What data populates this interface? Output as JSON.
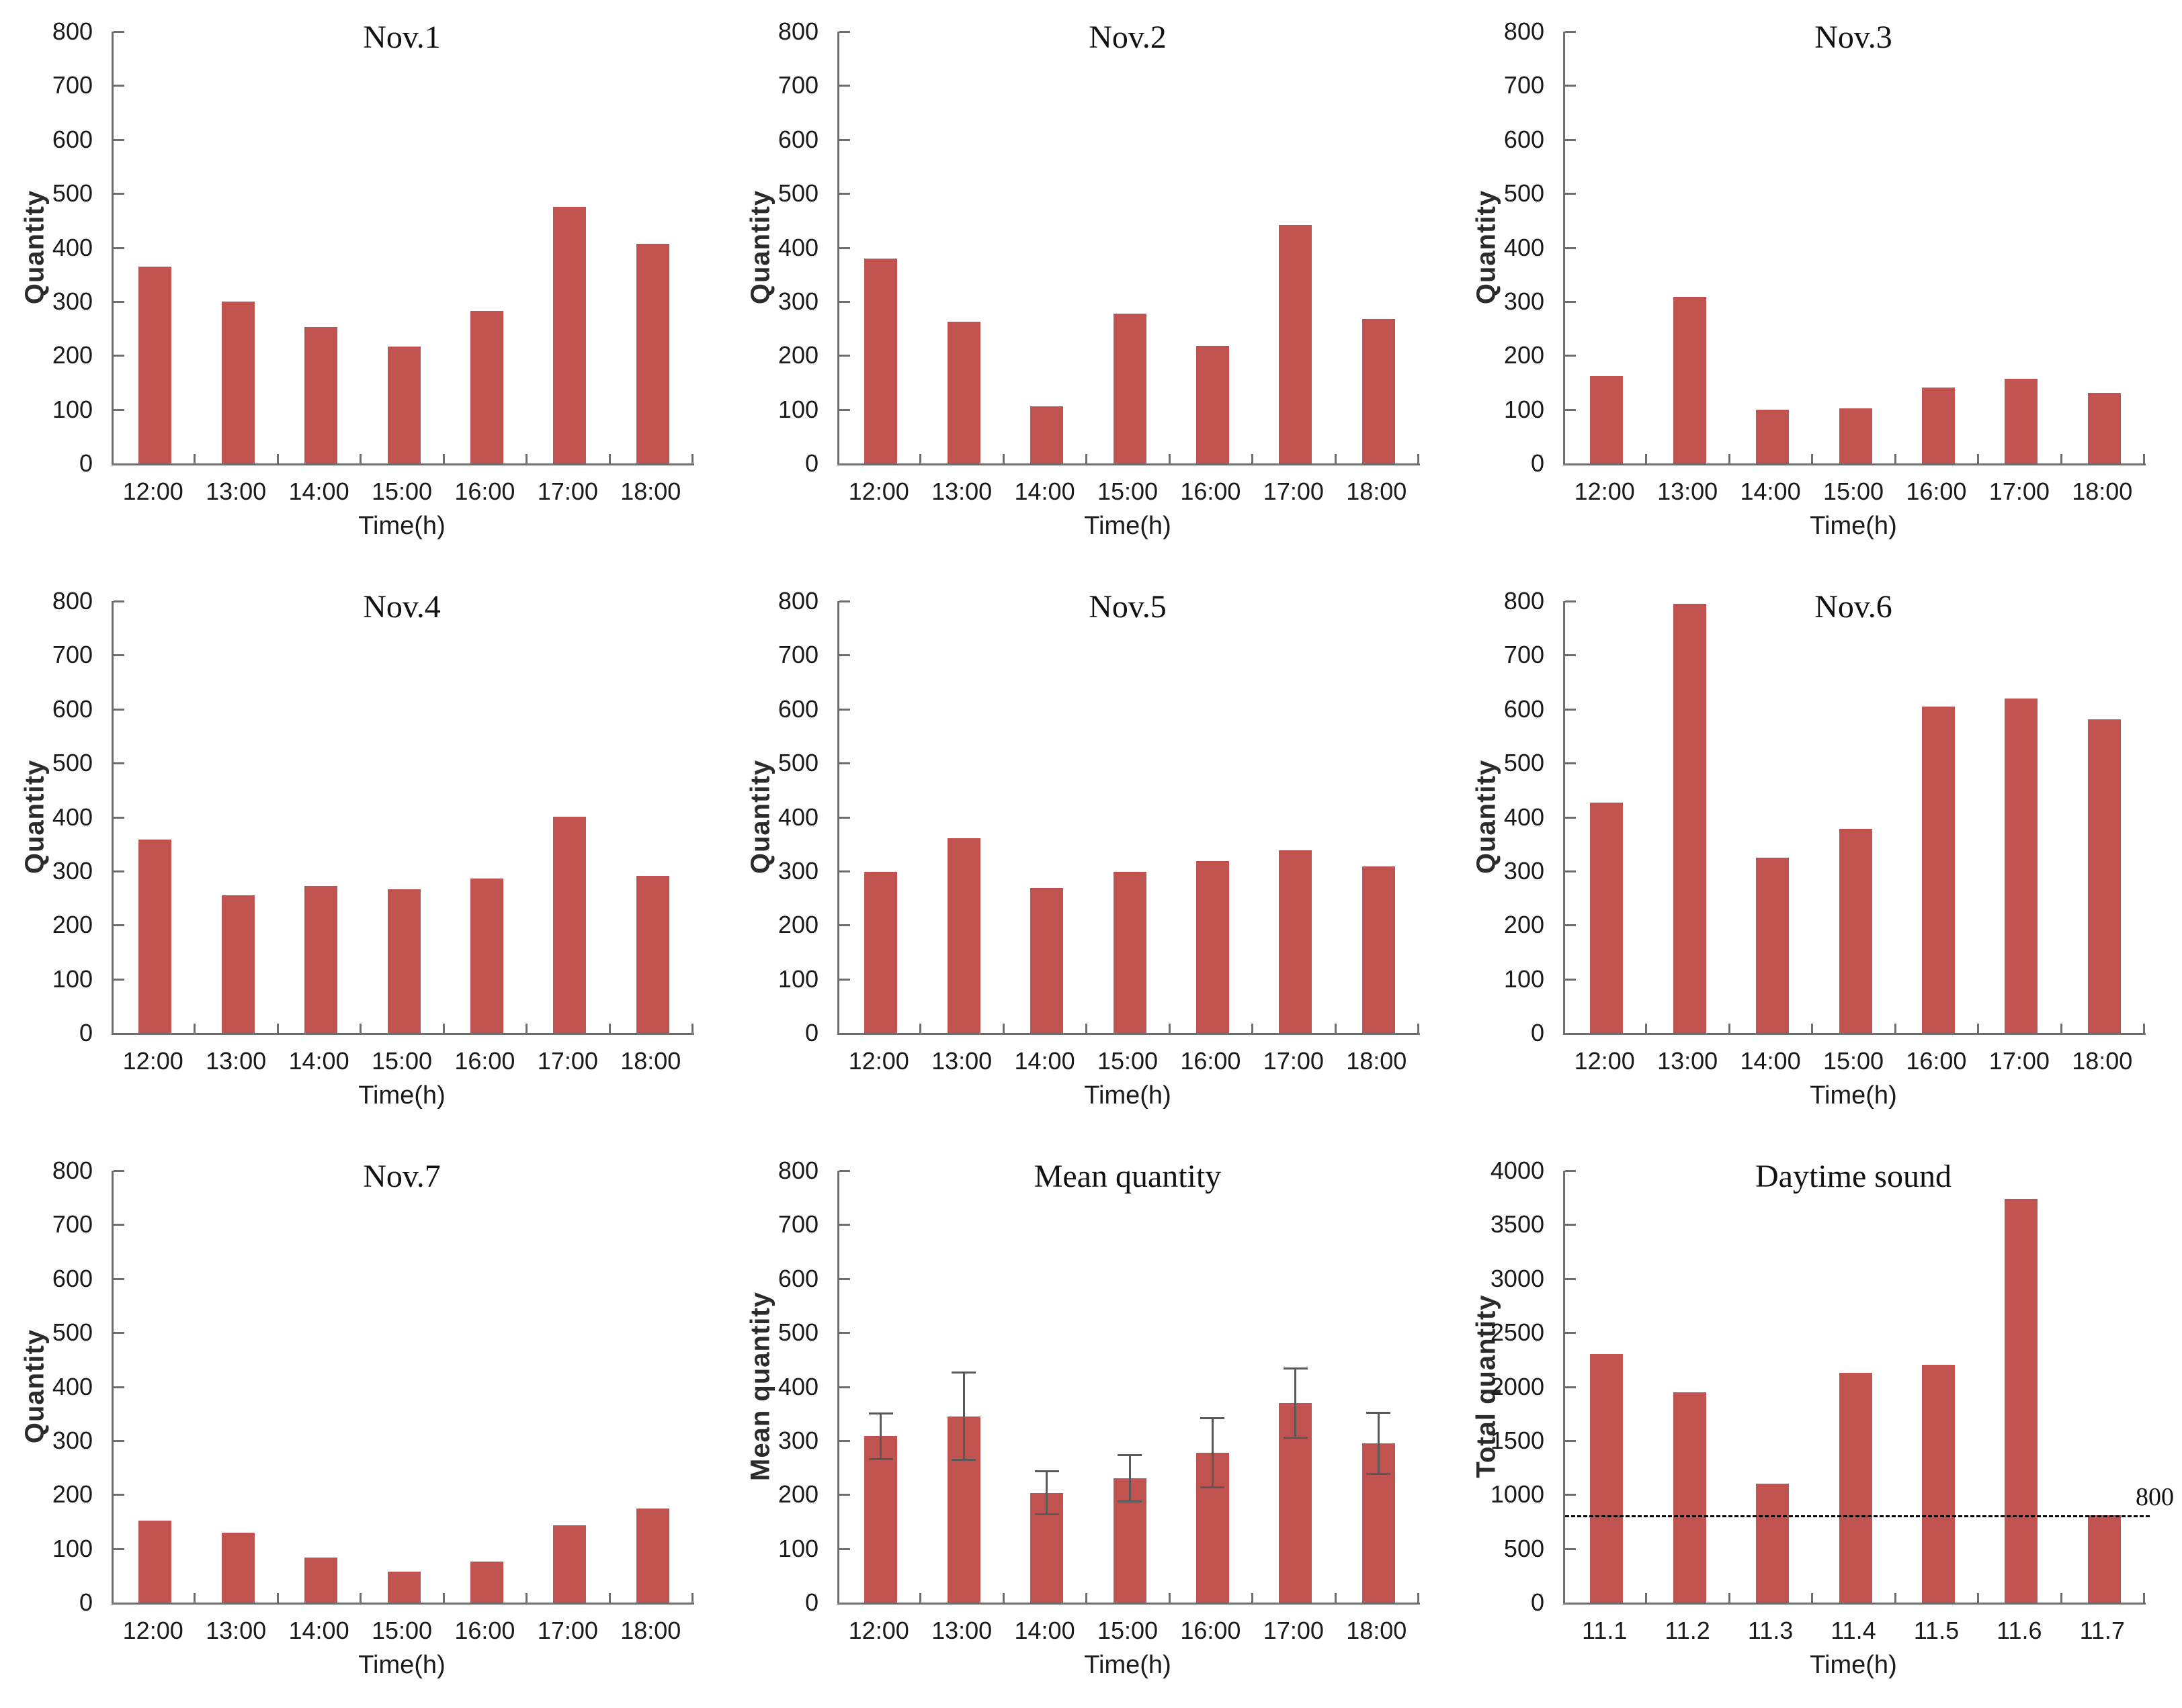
{
  "style": {
    "bar_color": "#c0534f",
    "axis_color": "#6e6e6e",
    "error_bar_color": "#595959",
    "ref_line_color": "#000000",
    "text_color": "#1a1a1a"
  },
  "chart_data": [
    {
      "type": "bar",
      "title": "Nov.1",
      "ylabel": "Quantity",
      "xlabel": "Time(h)",
      "categories": [
        "12:00",
        "13:00",
        "14:00",
        "15:00",
        "16:00",
        "17:00",
        "18:00"
      ],
      "values": [
        365,
        300,
        253,
        217,
        283,
        475,
        407
      ],
      "ylim": [
        0,
        800
      ],
      "ytick_step": 100,
      "grid": false,
      "legend": "none"
    },
    {
      "type": "bar",
      "title": "Nov.2",
      "ylabel": "Quantity",
      "xlabel": "Time(h)",
      "categories": [
        "12:00",
        "13:00",
        "14:00",
        "15:00",
        "16:00",
        "17:00",
        "18:00"
      ],
      "values": [
        380,
        262,
        106,
        278,
        218,
        442,
        267
      ],
      "ylim": [
        0,
        800
      ],
      "ytick_step": 100,
      "grid": false,
      "legend": "none"
    },
    {
      "type": "bar",
      "title": "Nov.3",
      "ylabel": "Quantity",
      "xlabel": "Time(h)",
      "categories": [
        "12:00",
        "13:00",
        "14:00",
        "15:00",
        "16:00",
        "17:00",
        "18:00"
      ],
      "values": [
        162,
        308,
        99,
        102,
        140,
        157,
        131
      ],
      "ylim": [
        0,
        800
      ],
      "ytick_step": 100,
      "grid": false,
      "legend": "none"
    },
    {
      "type": "bar",
      "title": "Nov.4",
      "ylabel": "Quantity",
      "xlabel": "Time(h)",
      "categories": [
        "12:00",
        "13:00",
        "14:00",
        "15:00",
        "16:00",
        "17:00",
        "18:00"
      ],
      "values": [
        358,
        255,
        273,
        266,
        286,
        401,
        291
      ],
      "ylim": [
        0,
        800
      ],
      "ytick_step": 100,
      "grid": false,
      "legend": "none"
    },
    {
      "type": "bar",
      "title": "Nov.5",
      "ylabel": "Quantity",
      "xlabel": "Time(h)",
      "categories": [
        "12:00",
        "13:00",
        "14:00",
        "15:00",
        "16:00",
        "17:00",
        "18:00"
      ],
      "values": [
        299,
        361,
        269,
        299,
        318,
        339,
        308
      ],
      "ylim": [
        0,
        800
      ],
      "ytick_step": 100,
      "grid": false,
      "legend": "none"
    },
    {
      "type": "bar",
      "title": "Nov.6",
      "ylabel": "Quantity",
      "xlabel": "Time(h)",
      "categories": [
        "12:00",
        "13:00",
        "14:00",
        "15:00",
        "16:00",
        "17:00",
        "18:00"
      ],
      "values": [
        427,
        795,
        325,
        378,
        605,
        620,
        581
      ],
      "ylim": [
        0,
        800
      ],
      "ytick_step": 100,
      "grid": false,
      "legend": "none"
    },
    {
      "type": "bar",
      "title": "Nov.7",
      "ylabel": "Quantity",
      "xlabel": "Time(h)",
      "categories": [
        "12:00",
        "13:00",
        "14:00",
        "15:00",
        "16:00",
        "17:00",
        "18:00"
      ],
      "values": [
        152,
        130,
        84,
        57,
        76,
        143,
        174
      ],
      "ylim": [
        0,
        800
      ],
      "ytick_step": 100,
      "grid": false,
      "legend": "none"
    },
    {
      "type": "bar",
      "title": "Mean quantity",
      "ylabel": "Mean quantity",
      "xlabel": "Time(h)",
      "categories": [
        "12:00",
        "13:00",
        "14:00",
        "15:00",
        "16:00",
        "17:00",
        "18:00"
      ],
      "values": [
        308,
        345,
        203,
        230,
        277,
        369,
        295
      ],
      "errors": [
        42,
        81,
        40,
        43,
        64,
        64,
        57
      ],
      "ylim": [
        0,
        800
      ],
      "ytick_step": 100,
      "grid": false,
      "legend": "none"
    },
    {
      "type": "bar",
      "title": "Daytime sound",
      "ylabel": "Total quantity",
      "xlabel": "Time(h)",
      "categories": [
        "11.1",
        "11.2",
        "11.3",
        "11.4",
        "11.5",
        "11.6",
        "11.7"
      ],
      "values": [
        2300,
        1950,
        1100,
        2130,
        2200,
        3740,
        810
      ],
      "ylim": [
        0,
        4000
      ],
      "ytick_step": 500,
      "grid": false,
      "legend": "none",
      "ref_line": {
        "value": 800,
        "label": "800"
      }
    }
  ]
}
